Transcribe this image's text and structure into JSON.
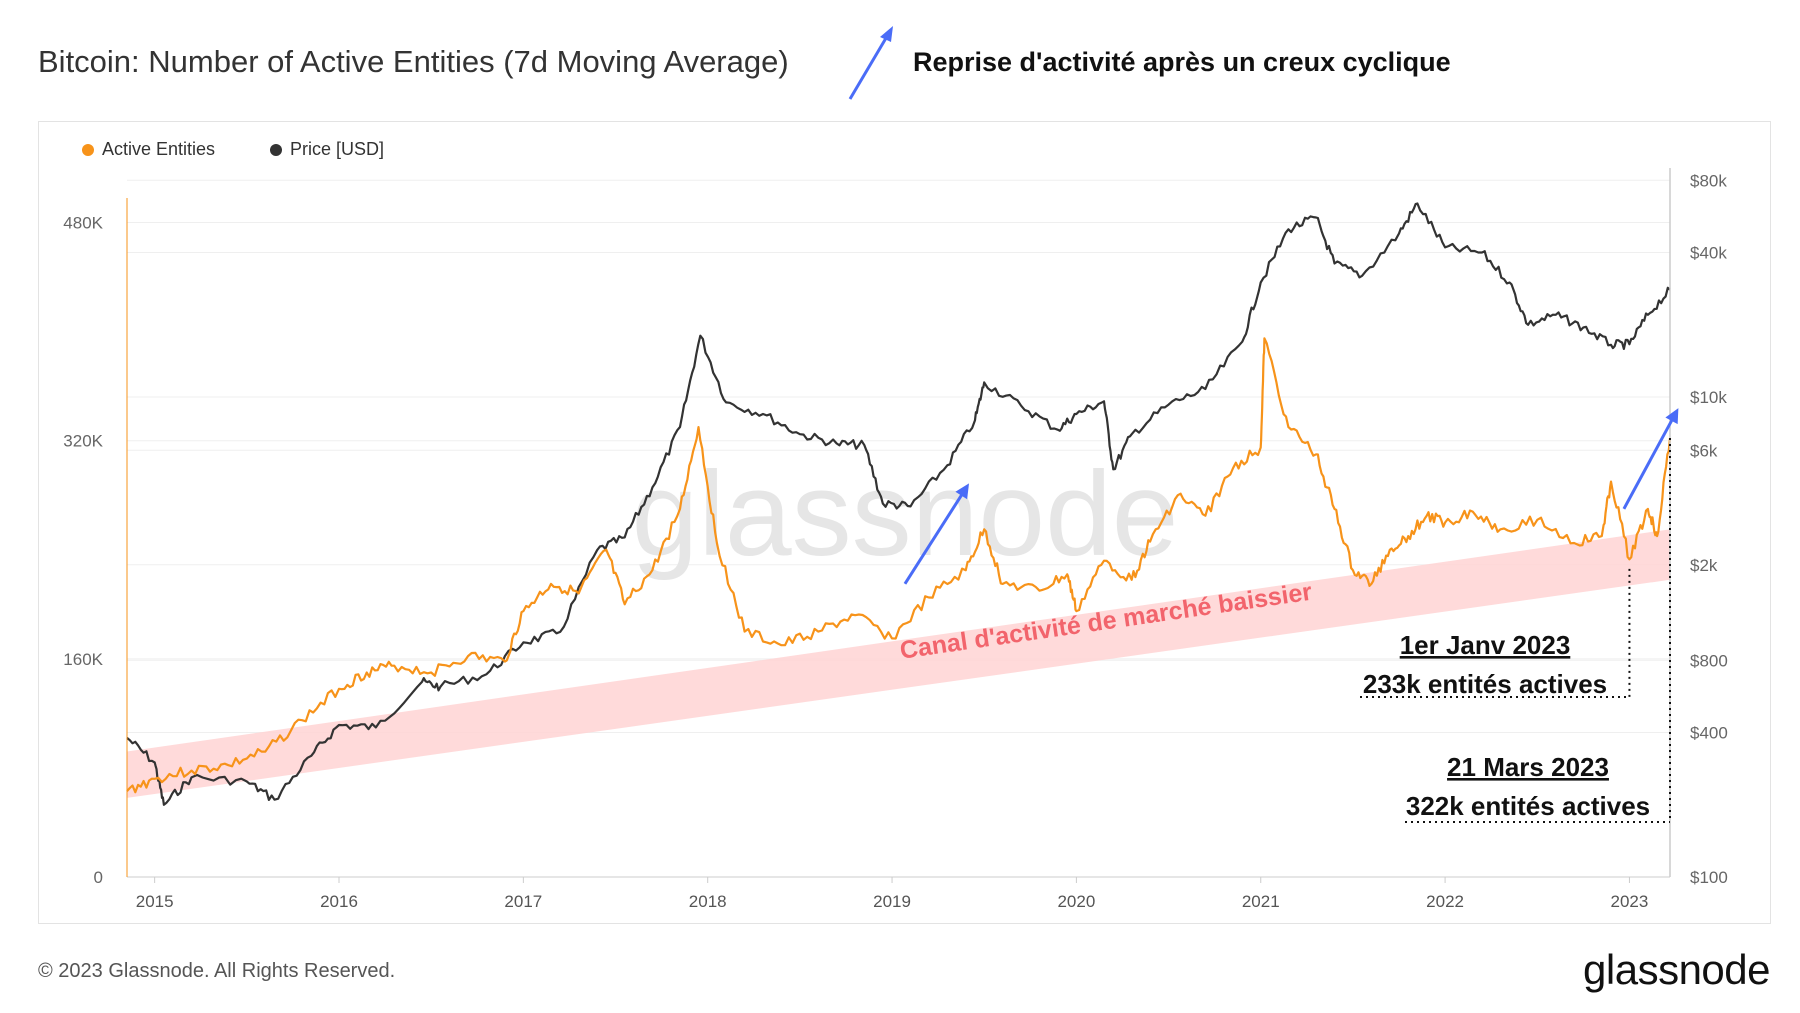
{
  "page": {
    "title": "Bitcoin: Number of Active Entities (7d Moving Average)",
    "headline": "Reprise d'activité après un creux cyclique",
    "copyright": "© 2023 Glassnode. All Rights Reserved.",
    "logo": "glassnode",
    "watermark": "glassnode"
  },
  "chart_data": {
    "type": "line",
    "x_start": 2014.85,
    "x_end": 2023.22,
    "xticks": [
      "2015",
      "2016",
      "2017",
      "2018",
      "2019",
      "2020",
      "2021",
      "2022",
      "2023"
    ],
    "y_left": {
      "min": 0,
      "max": 520000,
      "ticks": [
        0,
        160000,
        320000,
        480000
      ],
      "tick_labels": [
        "0",
        "160K",
        "320K",
        "480K"
      ]
    },
    "y_right": {
      "scale": "log",
      "min": 100,
      "max": 90000,
      "ticks": [
        100,
        400,
        800,
        2000,
        6000,
        10000,
        40000,
        80000
      ],
      "tick_labels": [
        "$100",
        "$400",
        "$800",
        "$2k",
        "$6k",
        "$10k",
        "$40k",
        "$80k"
      ]
    },
    "legend": [
      {
        "name": "Active Entities",
        "color": "#f7931a"
      },
      {
        "name": "Price [USD]",
        "color": "#333333"
      }
    ],
    "series": [
      {
        "name": "Active Entities",
        "axis": "left",
        "color": "#f7931a",
        "points": [
          [
            2014.85,
            63000
          ],
          [
            2015.0,
            72000
          ],
          [
            2015.2,
            78000
          ],
          [
            2015.4,
            82000
          ],
          [
            2015.6,
            92000
          ],
          [
            2015.8,
            115000
          ],
          [
            2016.0,
            138000
          ],
          [
            2016.15,
            150000
          ],
          [
            2016.3,
            155000
          ],
          [
            2016.5,
            150000
          ],
          [
            2016.7,
            162000
          ],
          [
            2016.9,
            158000
          ],
          [
            2017.0,
            195000
          ],
          [
            2017.15,
            215000
          ],
          [
            2017.3,
            208000
          ],
          [
            2017.45,
            240000
          ],
          [
            2017.55,
            200000
          ],
          [
            2017.7,
            225000
          ],
          [
            2017.85,
            270000
          ],
          [
            2017.95,
            330000
          ],
          [
            2018.05,
            245000
          ],
          [
            2018.2,
            180000
          ],
          [
            2018.4,
            170000
          ],
          [
            2018.6,
            180000
          ],
          [
            2018.8,
            192000
          ],
          [
            2019.0,
            175000
          ],
          [
            2019.2,
            205000
          ],
          [
            2019.4,
            225000
          ],
          [
            2019.5,
            255000
          ],
          [
            2019.6,
            215000
          ],
          [
            2019.8,
            210000
          ],
          [
            2019.95,
            222000
          ],
          [
            2020.0,
            195000
          ],
          [
            2020.15,
            232000
          ],
          [
            2020.3,
            218000
          ],
          [
            2020.4,
            246000
          ],
          [
            2020.55,
            280000
          ],
          [
            2020.7,
            265000
          ],
          [
            2020.85,
            300000
          ],
          [
            2021.0,
            315000
          ],
          [
            2021.02,
            395000
          ],
          [
            2021.15,
            330000
          ],
          [
            2021.3,
            310000
          ],
          [
            2021.4,
            270000
          ],
          [
            2021.5,
            225000
          ],
          [
            2021.6,
            215000
          ],
          [
            2021.7,
            240000
          ],
          [
            2021.8,
            250000
          ],
          [
            2021.9,
            265000
          ],
          [
            2022.0,
            260000
          ],
          [
            2022.15,
            268000
          ],
          [
            2022.3,
            255000
          ],
          [
            2022.5,
            262000
          ],
          [
            2022.7,
            245000
          ],
          [
            2022.85,
            250000
          ],
          [
            2022.9,
            290000
          ],
          [
            2023.0,
            233000
          ],
          [
            2023.1,
            270000
          ],
          [
            2023.15,
            250000
          ],
          [
            2023.22,
            322000
          ]
        ]
      },
      {
        "name": "Price [USD]",
        "axis": "right",
        "color": "#333333",
        "points": [
          [
            2014.85,
            380
          ],
          [
            2015.0,
            300
          ],
          [
            2015.05,
            200
          ],
          [
            2015.2,
            260
          ],
          [
            2015.5,
            250
          ],
          [
            2015.65,
            210
          ],
          [
            2015.85,
            320
          ],
          [
            2016.0,
            430
          ],
          [
            2016.2,
            420
          ],
          [
            2016.45,
            650
          ],
          [
            2016.55,
            620
          ],
          [
            2016.8,
            700
          ],
          [
            2017.0,
            950
          ],
          [
            2017.2,
            1050
          ],
          [
            2017.4,
            2300
          ],
          [
            2017.55,
            2600
          ],
          [
            2017.7,
            4200
          ],
          [
            2017.85,
            7500
          ],
          [
            2017.96,
            18000
          ],
          [
            2018.1,
            9500
          ],
          [
            2018.3,
            8500
          ],
          [
            2018.5,
            7000
          ],
          [
            2018.7,
            6400
          ],
          [
            2018.85,
            6300
          ],
          [
            2018.95,
            3600
          ],
          [
            2019.1,
            3500
          ],
          [
            2019.3,
            5200
          ],
          [
            2019.45,
            8000
          ],
          [
            2019.5,
            11500
          ],
          [
            2019.7,
            9200
          ],
          [
            2019.9,
            7300
          ],
          [
            2020.0,
            8500
          ],
          [
            2020.15,
            9600
          ],
          [
            2020.2,
            5000
          ],
          [
            2020.3,
            7000
          ],
          [
            2020.5,
            9300
          ],
          [
            2020.7,
            10800
          ],
          [
            2020.9,
            17000
          ],
          [
            2021.0,
            30000
          ],
          [
            2021.15,
            50000
          ],
          [
            2021.3,
            56000
          ],
          [
            2021.4,
            36000
          ],
          [
            2021.55,
            32000
          ],
          [
            2021.75,
            48000
          ],
          [
            2021.85,
            64000
          ],
          [
            2022.0,
            42000
          ],
          [
            2022.2,
            40000
          ],
          [
            2022.35,
            30000
          ],
          [
            2022.45,
            20000
          ],
          [
            2022.6,
            22000
          ],
          [
            2022.75,
            19500
          ],
          [
            2022.9,
            16500
          ],
          [
            2023.0,
            16600
          ],
          [
            2023.1,
            22000
          ],
          [
            2023.22,
            28000
          ]
        ]
      }
    ],
    "bear_channel": {
      "label": "Canal d'activité de marché baissier",
      "color": "#ffd3d3",
      "upper": [
        [
          2014.85,
          92000
        ],
        [
          2023.22,
          255000
        ]
      ],
      "lower": [
        [
          2014.85,
          58000
        ],
        [
          2023.22,
          218000
        ]
      ]
    },
    "annotations": [
      {
        "date": "1er Janv 2023",
        "text": "233k entités actives",
        "x": 2023.0
      },
      {
        "date": "21 Mars 2023",
        "text": "322k entités actives",
        "x": 2023.22
      }
    ],
    "arrows": [
      {
        "from": [
          2019.07,
          215000
        ],
        "to": [
          2019.4,
          285000
        ]
      },
      {
        "from": [
          2022.97,
          270000
        ],
        "to": [
          2023.25,
          340000
        ]
      }
    ]
  }
}
